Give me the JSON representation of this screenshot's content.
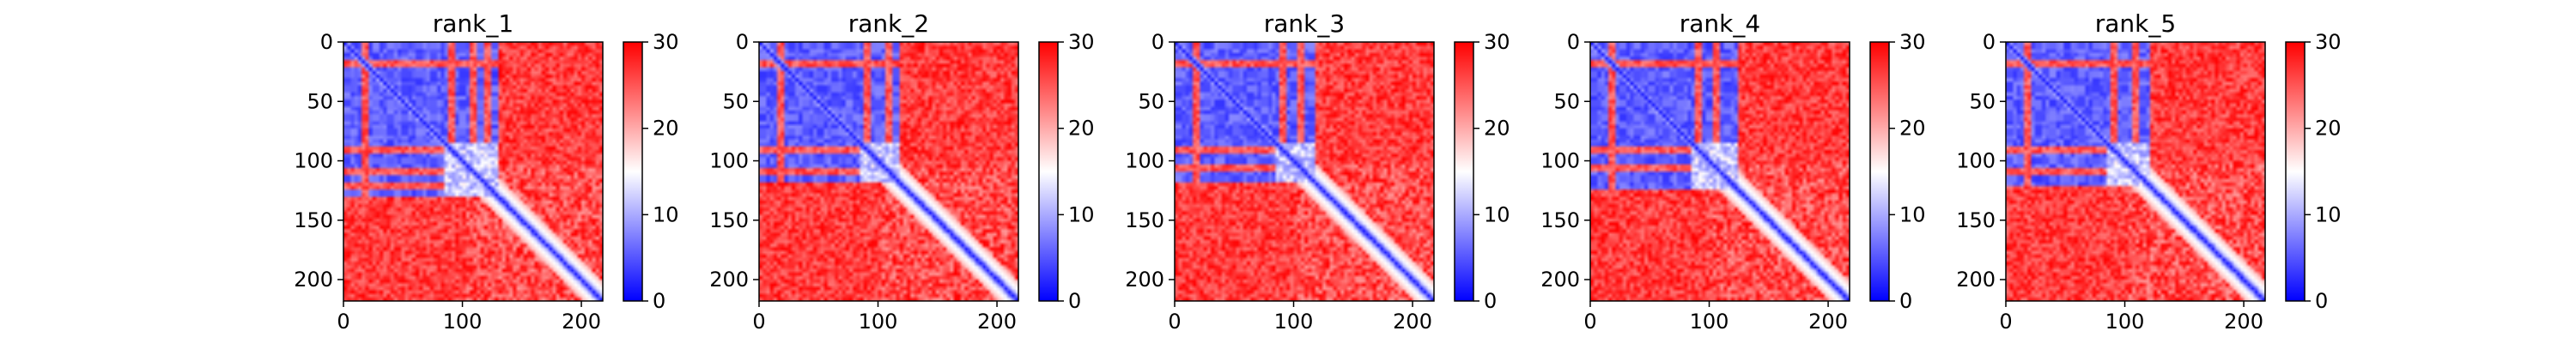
{
  "chart_data": [
    {
      "type": "heatmap",
      "title": "rank_1",
      "xlim": [
        0,
        218
      ],
      "ylim": [
        218,
        0
      ],
      "xticks": [
        "0",
        "100",
        "200"
      ],
      "yticks": [
        "0",
        "50",
        "100",
        "150",
        "200"
      ],
      "colorbar": {
        "min": 0,
        "max": 30,
        "ticks": [
          "0",
          "10",
          "20",
          "30"
        ],
        "cmap": "bwr",
        "low_color": "#0000ff",
        "mid_color": "#ffffff",
        "high_color": "#ff0000"
      },
      "regions": {
        "low_block_end": 128,
        "band_rows": [
          16,
          88,
          108,
          120
        ],
        "variant": 0
      }
    },
    {
      "type": "heatmap",
      "title": "rank_2",
      "xlim": [
        0,
        218
      ],
      "ylim": [
        218,
        0
      ],
      "xticks": [
        "0",
        "100",
        "200"
      ],
      "yticks": [
        "0",
        "50",
        "100",
        "150",
        "200"
      ],
      "colorbar": {
        "min": 0,
        "max": 30,
        "ticks": [
          "0",
          "10",
          "20",
          "30"
        ],
        "cmap": "bwr",
        "low_color": "#0000ff",
        "mid_color": "#ffffff",
        "high_color": "#ff0000"
      },
      "regions": {
        "low_block_end": 118,
        "band_rows": [
          16,
          88,
          108
        ],
        "variant": 1
      }
    },
    {
      "type": "heatmap",
      "title": "rank_3",
      "xlim": [
        0,
        218
      ],
      "ylim": [
        218,
        0
      ],
      "xticks": [
        "0",
        "100",
        "200"
      ],
      "yticks": [
        "0",
        "50",
        "100",
        "150",
        "200"
      ],
      "colorbar": {
        "min": 0,
        "max": 30,
        "ticks": [
          "0",
          "10",
          "20",
          "30"
        ],
        "cmap": "bwr",
        "low_color": "#0000ff",
        "mid_color": "#ffffff",
        "high_color": "#ff0000"
      },
      "regions": {
        "low_block_end": 118,
        "band_rows": [
          16,
          88,
          104
        ],
        "variant": 2
      }
    },
    {
      "type": "heatmap",
      "title": "rank_4",
      "xlim": [
        0,
        218
      ],
      "ylim": [
        218,
        0
      ],
      "xticks": [
        "0",
        "100",
        "200"
      ],
      "yticks": [
        "0",
        "50",
        "100",
        "150",
        "200"
      ],
      "colorbar": {
        "min": 0,
        "max": 30,
        "ticks": [
          "0",
          "10",
          "20",
          "30"
        ],
        "cmap": "bwr",
        "low_color": "#0000ff",
        "mid_color": "#ffffff",
        "high_color": "#ff0000"
      },
      "regions": {
        "low_block_end": 122,
        "band_rows": [
          16,
          88,
          104
        ],
        "variant": 3
      }
    },
    {
      "type": "heatmap",
      "title": "rank_5",
      "xlim": [
        0,
        218
      ],
      "ylim": [
        218,
        0
      ],
      "xticks": [
        "0",
        "100",
        "200"
      ],
      "yticks": [
        "0",
        "50",
        "100",
        "150",
        "200"
      ],
      "colorbar": {
        "min": 0,
        "max": 30,
        "ticks": [
          "0",
          "10",
          "20",
          "30"
        ],
        "cmap": "bwr",
        "low_color": "#0000ff",
        "mid_color": "#ffffff",
        "high_color": "#ff0000"
      },
      "regions": {
        "low_block_end": 120,
        "band_rows": [
          16,
          88,
          108
        ],
        "variant": 4
      }
    }
  ]
}
